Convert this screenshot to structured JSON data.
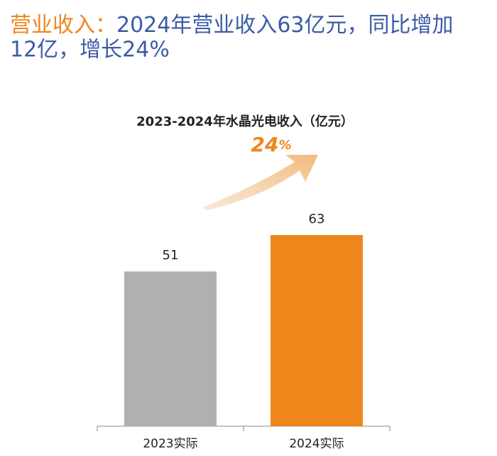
{
  "headline": {
    "label": "营业收入：",
    "line1": "2024年营业收入63亿元，同比增加",
    "line2": "12亿，增长24%"
  },
  "chart_data": {
    "type": "bar",
    "title": "2023-2024年水晶光电收入（亿元）",
    "growth": {
      "number": "24",
      "unit": "%"
    },
    "categories": [
      "2023实际",
      "2024实际"
    ],
    "values": [
      51,
      63
    ],
    "colors": [
      "#b0b0b0",
      "#ee861c"
    ],
    "grid": false
  }
}
